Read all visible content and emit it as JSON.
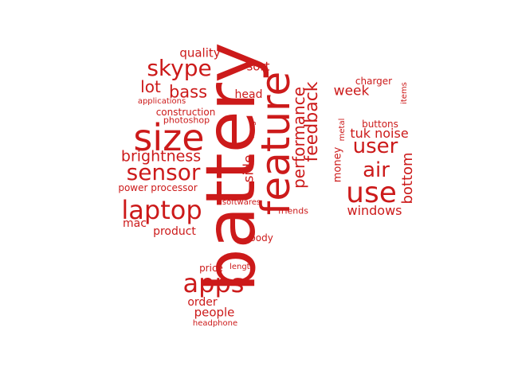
{
  "color": "#cc1a1a",
  "words": [
    {
      "text": "battery"
    },
    {
      "text": "feature"
    },
    {
      "text": "size"
    },
    {
      "text": "sensor"
    },
    {
      "text": "laptop"
    },
    {
      "text": "apps"
    },
    {
      "text": "use"
    },
    {
      "text": "skype"
    },
    {
      "text": "user"
    },
    {
      "text": "air"
    },
    {
      "text": "feedback"
    },
    {
      "text": "performance"
    },
    {
      "text": "bottom"
    },
    {
      "text": "brightness"
    },
    {
      "text": "lot"
    },
    {
      "text": "bass"
    },
    {
      "text": "windows"
    },
    {
      "text": "week"
    },
    {
      "text": "tuk noise"
    },
    {
      "text": "side"
    },
    {
      "text": "quality"
    },
    {
      "text": "sort"
    },
    {
      "text": "head"
    },
    {
      "text": "product"
    },
    {
      "text": "mac"
    },
    {
      "text": "people"
    },
    {
      "text": "order"
    },
    {
      "text": "power processor"
    },
    {
      "text": "money"
    },
    {
      "text": "construction"
    },
    {
      "text": "charger"
    },
    {
      "text": "items"
    },
    {
      "text": "buttons"
    },
    {
      "text": "photoshop"
    },
    {
      "text": "friends"
    },
    {
      "text": "body"
    },
    {
      "text": "price"
    },
    {
      "text": "metal"
    },
    {
      "text": "mag"
    },
    {
      "text": "applications"
    },
    {
      "text": "softwares"
    },
    {
      "text": "length"
    },
    {
      "text": "headphone"
    }
  ]
}
